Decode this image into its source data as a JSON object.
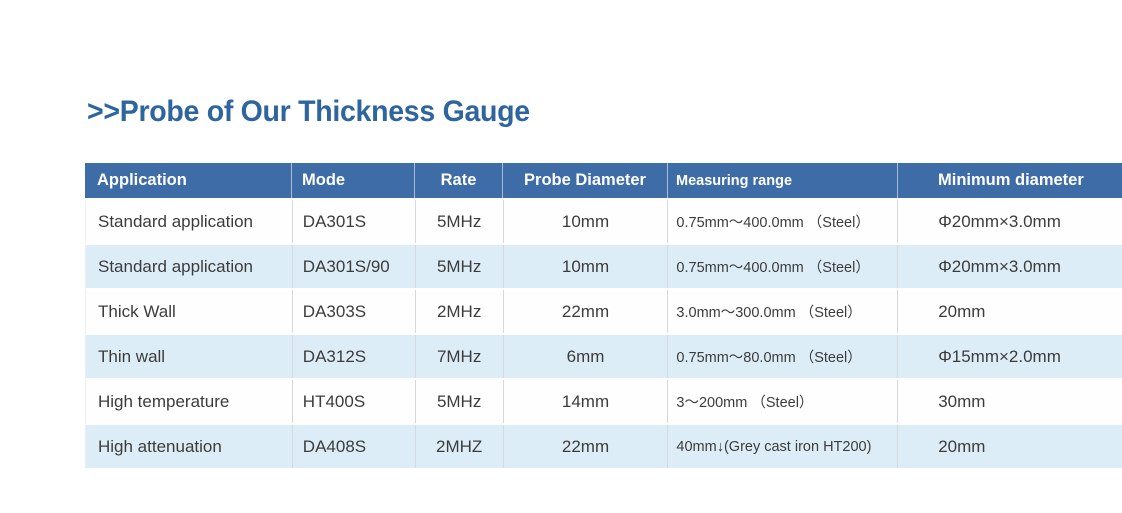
{
  "page_title": ">>Probe of Our Thickness Gauge",
  "table": {
    "columns": [
      "Application",
      "Mode",
      "Rate",
      "Probe Diameter",
      "Measuring range",
      "Minimum diameter"
    ],
    "rows": [
      [
        "Standard application",
        "DA301S",
        "5MHz",
        "10mm",
        "0.75mm～400.0mm （Steel）",
        "Φ20mm×3.0mm"
      ],
      [
        "Standard application",
        "DA301S/90",
        "5MHz",
        "10mm",
        "0.75mm～400.0mm （Steel）",
        "Φ20mm×3.0mm"
      ],
      [
        "Thick Wall",
        "DA303S",
        "2MHz",
        "22mm",
        "3.0mm～300.0mm （Steel）",
        "20mm"
      ],
      [
        "Thin wall",
        "DA312S",
        "7MHz",
        "6mm",
        "0.75mm～80.0mm （Steel）",
        "Φ15mm×2.0mm"
      ],
      [
        "High temperature",
        "HT400S",
        "5MHz",
        "14mm",
        "3～200mm （Steel）",
        "30mm"
      ],
      [
        "High attenuation",
        "DA408S",
        "2MHZ",
        "22mm",
        "40mm↓(Grey cast iron HT200)",
        "20mm"
      ]
    ]
  },
  "colors": {
    "header_bg": "#3e6ca6",
    "row_alt_bg": "#ddedf8",
    "row_plain_bg": "#fefefe",
    "title_text": "#2f659e",
    "body_text": "#3c3c3c",
    "header_text": "#ffffff",
    "divider": "#d5d9dd"
  }
}
